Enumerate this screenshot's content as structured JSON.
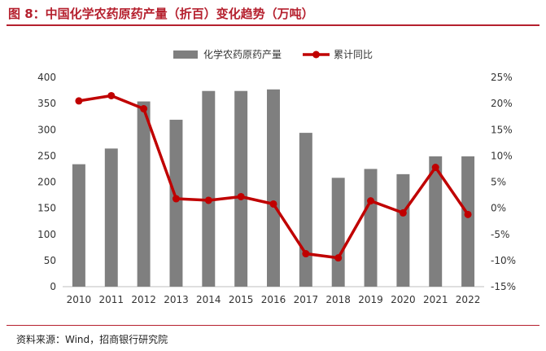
{
  "figure": {
    "title": "图 8：中国化学农药原药产量（折百）变化趋势（万吨）",
    "source": "资料来源：Wind，招商银行研究院"
  },
  "colors": {
    "bar": "#7f7f7f",
    "line": "#c00000",
    "title": "#b5202e"
  },
  "chart_data": {
    "type": "bar",
    "categories": [
      "2010",
      "2011",
      "2012",
      "2013",
      "2014",
      "2015",
      "2016",
      "2017",
      "2018",
      "2019",
      "2020",
      "2021",
      "2022"
    ],
    "series": [
      {
        "name": "化学农药原药产量",
        "type": "bar",
        "axis": "left",
        "values": [
          234,
          264,
          354,
          319,
          374,
          374,
          377,
          294,
          208,
          225,
          215,
          249,
          249
        ]
      },
      {
        "name": "累计同比",
        "type": "line",
        "axis": "right",
        "values": [
          20.5,
          21.5,
          19.0,
          1.8,
          1.5,
          2.2,
          0.8,
          -8.7,
          -9.5,
          1.4,
          -0.9,
          7.8,
          -1.2
        ]
      }
    ],
    "y_left": {
      "min": 0,
      "max": 400,
      "step": 50,
      "ticks": [
        "0",
        "50",
        "100",
        "150",
        "200",
        "250",
        "300",
        "350",
        "400"
      ]
    },
    "y_right": {
      "min": -15,
      "max": 25,
      "step": 5,
      "ticks": [
        "-15%",
        "-10%",
        "-5%",
        "0%",
        "5%",
        "10%",
        "15%",
        "20%",
        "25%"
      ]
    },
    "legend": {
      "position": "top"
    },
    "grid": false
  }
}
